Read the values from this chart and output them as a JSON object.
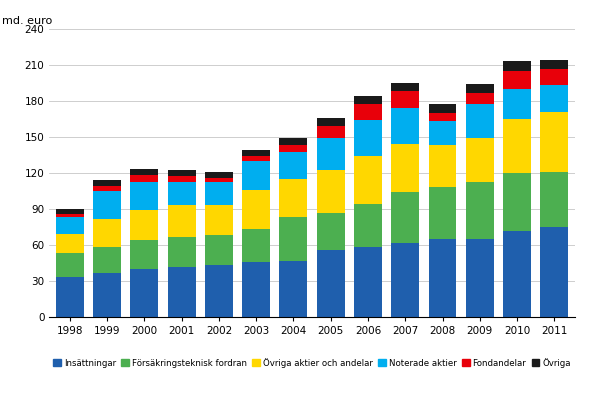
{
  "years": [
    "1998",
    "1999",
    "2000",
    "2001",
    "2002",
    "2003",
    "2004",
    "2005",
    "2006",
    "2007",
    "2008",
    "2009",
    "2010",
    "2011"
  ],
  "categories": [
    "Insättningar",
    "Försäkringsteknisk fordran",
    "Övriga aktier och andelar",
    "Noterade aktier",
    "Fondandelar",
    "Övriga"
  ],
  "colors": [
    "#1F5FAD",
    "#4CAF50",
    "#FFD700",
    "#00AEEF",
    "#E8000A",
    "#1A1A1A"
  ],
  "data": {
    "Insättningar": [
      33,
      37,
      40,
      42,
      43,
      46,
      47,
      56,
      58,
      62,
      65,
      65,
      72,
      75
    ],
    "Försäkringsteknisk fordran": [
      20,
      21,
      24,
      25,
      25,
      27,
      36,
      31,
      36,
      42,
      43,
      47,
      48,
      46
    ],
    "Övriga aktier och andelar": [
      16,
      24,
      25,
      26,
      25,
      33,
      32,
      35,
      40,
      40,
      35,
      37,
      45,
      50
    ],
    "Noterade aktier": [
      14,
      23,
      23,
      19,
      19,
      24,
      22,
      27,
      30,
      30,
      20,
      28,
      25,
      22
    ],
    "Fondandelar": [
      3,
      4,
      6,
      5,
      4,
      4,
      6,
      10,
      13,
      14,
      7,
      9,
      15,
      13
    ],
    "Övriga": [
      4,
      5,
      5,
      5,
      5,
      5,
      6,
      7,
      7,
      7,
      7,
      8,
      8,
      8
    ]
  },
  "ylabel": "md. euro",
  "ylim": [
    0,
    240
  ],
  "yticks": [
    0,
    30,
    60,
    90,
    120,
    150,
    180,
    210,
    240
  ],
  "background_color": "#FFFFFF",
  "grid_color": "#BBBBBB",
  "bar_width": 0.75,
  "figsize": [
    6.07,
    4.18
  ],
  "dpi": 100
}
